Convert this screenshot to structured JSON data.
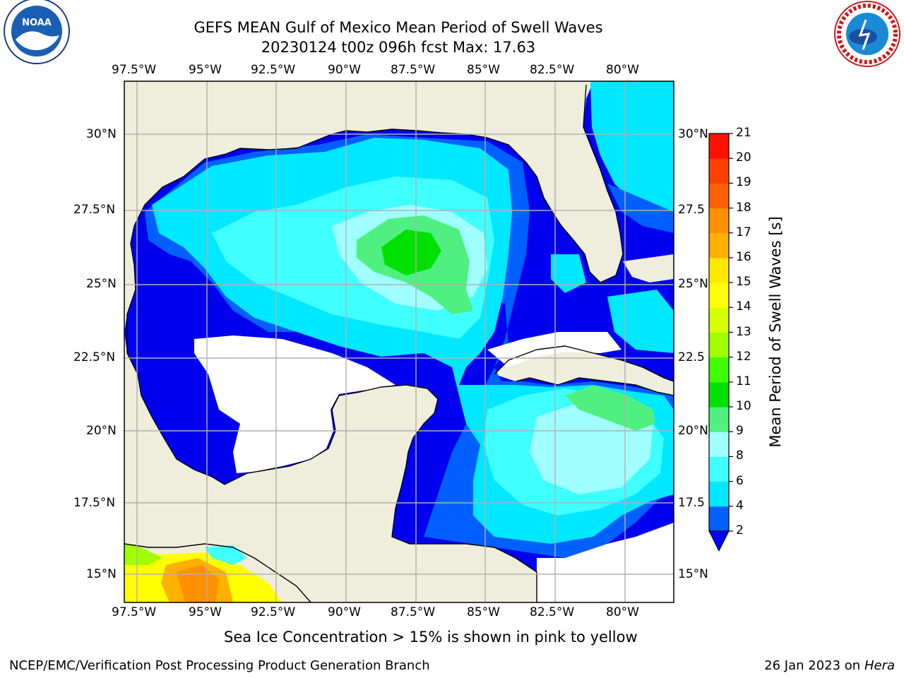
{
  "title_line1": "GEFS MEAN Gulf of Mexico Mean Period of Swell Waves",
  "title_line2": "20230124 t00z 096h fcst   Max: 17.63",
  "lon_labels": [
    "97.5°W",
    "95°W",
    "92.5°W",
    "90°W",
    "87.5°W",
    "85°W",
    "82.5°W",
    "80°W"
  ],
  "lat_labels": [
    "30°N",
    "27.5°N",
    "25°N",
    "22.5°N",
    "20°N",
    "17.5°N",
    "15°N"
  ],
  "lat_labels_right": [
    "30°N",
    "27.5",
    "25°N",
    "22.5",
    "20°N",
    "17.5",
    "15°N"
  ],
  "colorbar": {
    "label": "Mean Period of Swell Waves [s]",
    "ticks": [
      "21",
      "20",
      "19",
      "18",
      "17",
      "16",
      "15",
      "14",
      "13",
      "12",
      "11",
      "10",
      "9",
      "8",
      "6",
      "4",
      "2"
    ],
    "colors": [
      "#0060ff",
      "#00e8ff",
      "#40ffff",
      "#a0ffff",
      "#50f080",
      "#00e000",
      "#40ff00",
      "#a0ff00",
      "#d8ff00",
      "#ffff00",
      "#ffe800",
      "#ffb000",
      "#ff9000",
      "#ff6000",
      "#ff4000",
      "#ff1000"
    ],
    "extend_color": "#0000ff"
  },
  "map_colors": {
    "land": "#efeedc",
    "sea_base": "#0000ee",
    "c2": "#0060ff",
    "c4": "#00e8ff",
    "c6": "#40ffff",
    "c8": "#a0ffff",
    "c9": "#50f080",
    "c10": "#00e000",
    "grid": "#b0b0b0"
  },
  "ice_note": "Sea Ice Concentration > 15% is shown in pink to yellow",
  "footer_left": "NCEP/EMC/Verification Post Processing Product Generation Branch",
  "footer_date": "26 Jan 2023 on ",
  "footer_machine": "Hera",
  "logo_left_text": "NOAA",
  "logo_right_text": "NATIONAL WEATHER SERVICE"
}
